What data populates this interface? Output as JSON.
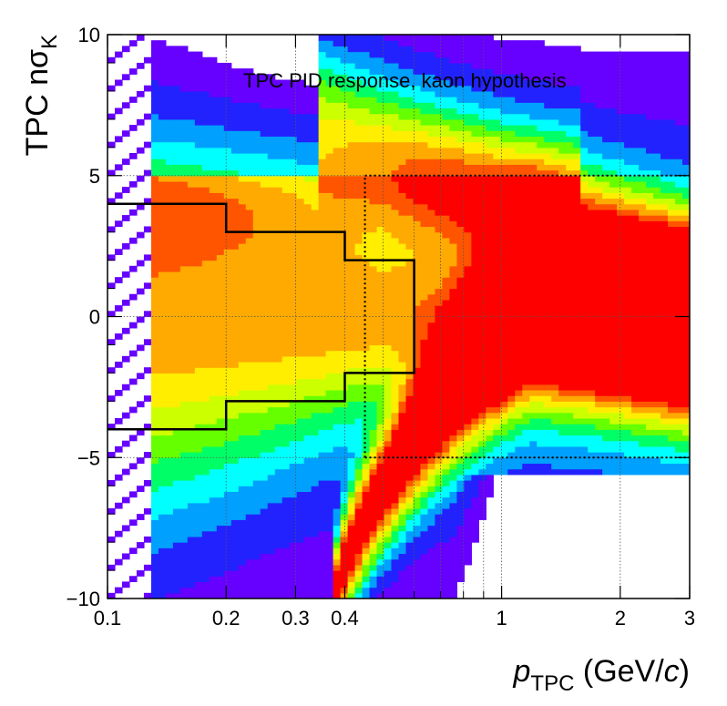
{
  "chart_data": {
    "type": "heatmap",
    "title": "",
    "annotation": "TPC PID response, kaon hypothesis",
    "xlabel": {
      "main": "p",
      "sub": "TPC",
      "unit_prefix": " (GeV/",
      "unit_italic": "c",
      "unit_suffix": ")"
    },
    "ylabel": {
      "main": "TPC nσ",
      "sub": "K"
    },
    "x_scale": "log",
    "xlim": [
      0.1,
      3
    ],
    "ylim": [
      -10,
      10
    ],
    "x_ticks": [
      {
        "value": 0.1,
        "label": "0.1"
      },
      {
        "value": 0.2,
        "label": "0.2"
      },
      {
        "value": 0.3,
        "label": "0.3"
      },
      {
        "value": 0.4,
        "label": "0.4"
      },
      {
        "value": 1,
        "label": "1"
      },
      {
        "value": 2,
        "label": "2"
      },
      {
        "value": 3,
        "label": "3"
      }
    ],
    "y_ticks": [
      {
        "value": -10,
        "label": "−10"
      },
      {
        "value": -5,
        "label": "−5"
      },
      {
        "value": 0,
        "label": "0"
      },
      {
        "value": 5,
        "label": "5"
      },
      {
        "value": 10,
        "label": "10"
      }
    ],
    "grid": true,
    "colormap": [
      "#ffffff",
      "#6600ff",
      "#2222ff",
      "#00a0ff",
      "#00ffff",
      "#00ff66",
      "#66ff00",
      "#ccff00",
      "#ffee00",
      "#ffaa00",
      "#ff5500",
      "#ff0000"
    ],
    "kaon_band": {
      "x_start": 0.42,
      "center": 0,
      "width": 1.0
    },
    "pion_band": {
      "x_start": 0.38,
      "x_peak": 1.2,
      "y_at_start": -10,
      "y_at_peak": 0.5,
      "width": 0.9
    },
    "proton_band": {
      "x_range": [
        0.5,
        1.6
      ],
      "center_at_1": 4.5,
      "width": 0.9
    },
    "electron_band": {
      "x_range": [
        0.12,
        0.6
      ],
      "center": 4.5,
      "width": 0.7
    },
    "selection_cut": {
      "upper": [
        [
          0.1,
          4
        ],
        [
          0.2,
          4
        ],
        [
          0.2,
          3
        ],
        [
          0.4,
          3
        ],
        [
          0.4,
          2
        ],
        [
          0.6,
          2
        ],
        [
          0.6,
          0
        ]
      ],
      "lower": [
        [
          0.1,
          -4
        ],
        [
          0.2,
          -4
        ],
        [
          0.2,
          -3
        ],
        [
          0.4,
          -3
        ],
        [
          0.4,
          -2
        ],
        [
          0.6,
          -2
        ],
        [
          0.6,
          0
        ]
      ]
    },
    "dotted_lines": [
      {
        "orientation": "horizontal",
        "y": 5,
        "x_from": 0.45,
        "x_to": 3
      },
      {
        "orientation": "horizontal",
        "y": -5,
        "x_from": 0.45,
        "x_to": 3
      },
      {
        "orientation": "vertical",
        "x": 0.45,
        "y_from": -5,
        "y_to": 5
      }
    ]
  }
}
